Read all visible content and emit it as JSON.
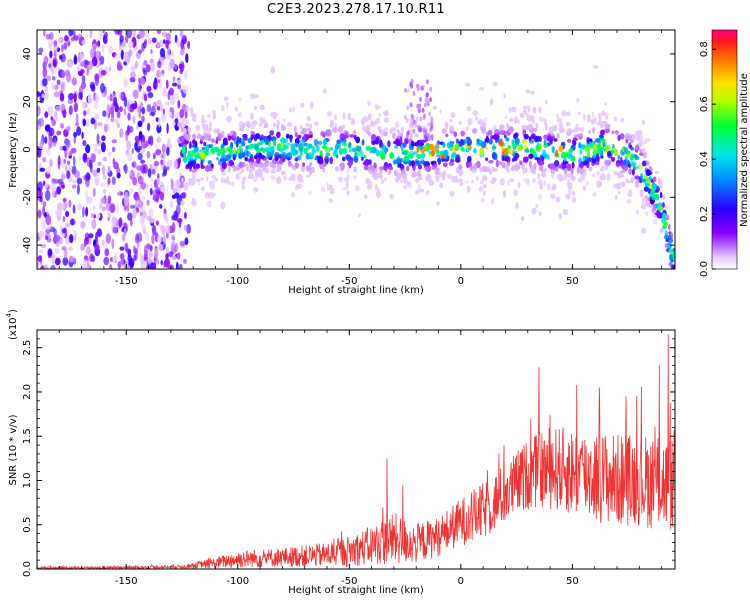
{
  "figure": {
    "title": "C2E3.2023.278.17.10.R11"
  },
  "chart_data": [
    {
      "type": "heatmap",
      "name": "spectrogram",
      "xlabel": "Height of straight line (km)",
      "ylabel": "Frequency (Hz)",
      "xlim": [
        -190,
        96
      ],
      "ylim": [
        -50,
        50
      ],
      "x_ticks": [
        -150,
        -100,
        -50,
        0,
        50
      ],
      "y_ticks": [
        -40,
        -20,
        0,
        20,
        40
      ],
      "colorbar": {
        "label": "Normalized spectral amplitude",
        "range": [
          0,
          0.87
        ],
        "ticks": [
          "0.0",
          "0.2",
          "0.4",
          "0.6",
          "0.8"
        ],
        "tick_values": [
          0,
          0.2,
          0.4,
          0.6,
          0.8
        ]
      },
      "ridge": {
        "x": [
          -125,
          -110,
          -100,
          -90,
          -80,
          -70,
          -60,
          -50,
          -40,
          -30,
          -20,
          -10,
          0,
          10,
          20,
          30,
          40,
          50,
          60,
          65,
          70,
          75,
          80,
          85,
          90,
          95
        ],
        "y": [
          -2,
          -2,
          0,
          1,
          1,
          0,
          0,
          0,
          -1,
          -2,
          -2,
          -1,
          0,
          0,
          1,
          1,
          -1,
          -2,
          0,
          2,
          0,
          -2,
          -7,
          -15,
          -25,
          -45
        ]
      }
    },
    {
      "type": "line",
      "name": "snr",
      "xlabel": "Height of straight line (km)",
      "ylabel": "SNR (10 * v/v)",
      "multiplier_label": "(x10",
      "multiplier_exp": "4",
      "xlim": [
        -190,
        96
      ],
      "ylim": [
        0,
        2.7
      ],
      "x_ticks": [
        -150,
        -100,
        -50,
        0,
        50
      ],
      "y_ticks": [
        "0.0",
        "0.5",
        "1.0",
        "1.5",
        "2.0",
        "2.5"
      ],
      "y_tick_values": [
        0,
        0.5,
        1.0,
        1.5,
        2.0,
        2.5
      ],
      "color": "#ee3333",
      "envelope": {
        "x": [
          -190,
          -150,
          -125,
          -110,
          -100,
          -80,
          -60,
          -50,
          -40,
          -30,
          -20,
          -10,
          0,
          10,
          20,
          30,
          40,
          50,
          60,
          70,
          80,
          90,
          95
        ],
        "base": [
          0.01,
          0.01,
          0.02,
          0.05,
          0.08,
          0.1,
          0.12,
          0.15,
          0.2,
          0.25,
          0.22,
          0.3,
          0.45,
          0.55,
          0.75,
          0.95,
          1.0,
          0.95,
          0.9,
          0.85,
          0.85,
          0.8,
          0.8
        ],
        "amplitude": [
          0.03,
          0.03,
          0.04,
          0.12,
          0.2,
          0.22,
          0.28,
          0.35,
          0.45,
          0.6,
          0.45,
          0.45,
          0.55,
          0.65,
          0.7,
          0.8,
          0.95,
          1.0,
          1.05,
          1.05,
          1.05,
          1.1,
          1.1
        ]
      },
      "peaks": [
        [
          -33,
          1.25
        ],
        [
          -26,
          0.95
        ],
        [
          35,
          2.28
        ],
        [
          52,
          2.08
        ],
        [
          62,
          2.05
        ],
        [
          93,
          2.65
        ],
        [
          89,
          2.3
        ],
        [
          74,
          1.95
        ]
      ]
    }
  ]
}
